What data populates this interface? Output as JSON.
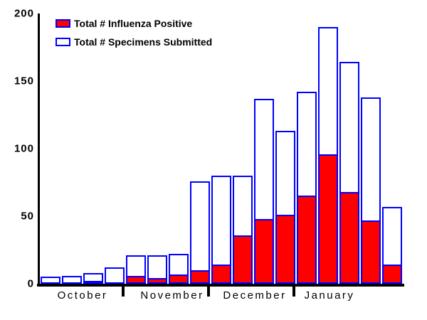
{
  "chart_data": {
    "type": "bar",
    "title": "",
    "description": "Weekly influenza surveillance: overlaid bars of specimens submitted (white, blue outline) and influenza positives (red fill) per week, October through January",
    "months": [
      {
        "label": "October",
        "weeks": 4
      },
      {
        "label": "November",
        "weeks": 4
      },
      {
        "label": "December",
        "weeks": 4
      },
      {
        "label": "January",
        "weeks": 5
      }
    ],
    "series": [
      {
        "name": "Total # Influenza Positive",
        "style": "filled",
        "fill_color": "#ff0000",
        "outline_color": "#0000ff",
        "values": [
          0,
          0,
          2,
          0,
          6,
          4,
          7,
          10,
          14,
          36,
          48,
          51,
          65,
          96,
          68,
          47,
          14
        ]
      },
      {
        "name": "Total # Specimens Submitted",
        "style": "outline",
        "fill_color": "#ffffff",
        "outline_color": "#0000ff",
        "values": [
          5,
          6,
          8,
          12,
          21,
          21,
          22,
          76,
          80,
          80,
          137,
          113,
          142,
          190,
          164,
          138,
          57
        ]
      }
    ],
    "y_axis": {
      "ticks": [
        200,
        150,
        100,
        50,
        0
      ],
      "range": [
        0,
        200
      ]
    },
    "xlabel": "",
    "ylabel": "",
    "grid": false,
    "legend_position": "top-left",
    "axis_color": "#000000"
  }
}
